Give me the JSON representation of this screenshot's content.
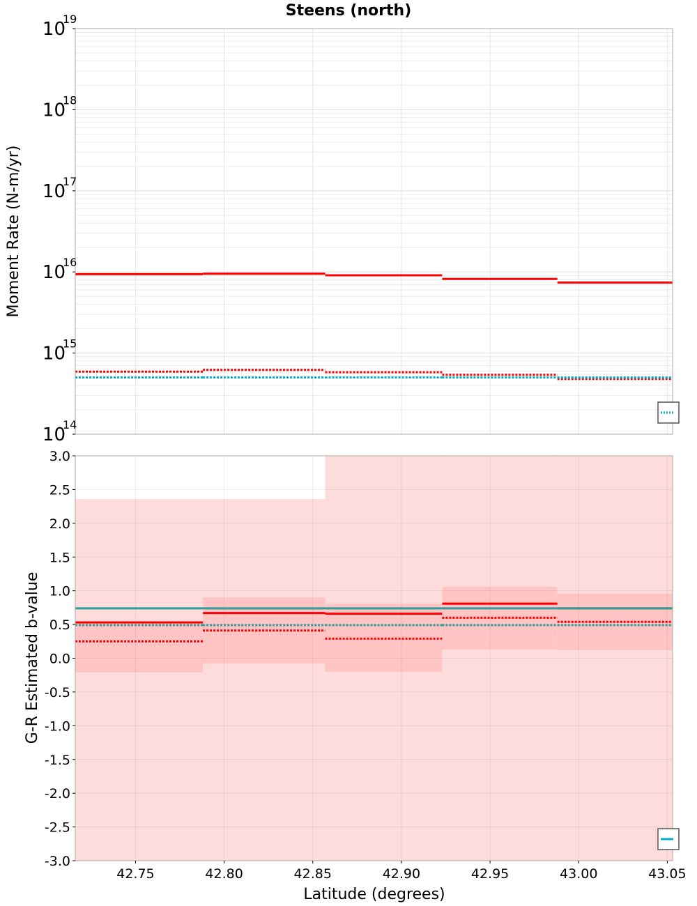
{
  "title": "Steens (north)",
  "chart_data": [
    {
      "type": "line",
      "subtype": "step",
      "xlabel": "",
      "ylabel": "Moment Rate (N-m/yr)",
      "yscale": "log",
      "xlim": [
        42.716,
        43.053
      ],
      "ylim_exponents": [
        14,
        19
      ],
      "ytick_base": "10",
      "ytick_exponents": [
        "14",
        "15",
        "16",
        "17",
        "18",
        "19"
      ],
      "bin_edges": [
        42.716,
        42.788,
        42.857,
        42.923,
        42.988,
        43.053
      ],
      "series": [
        {
          "name": "red solid",
          "style": "solid",
          "color": "#ff0000",
          "values": [
            9400000000000000.0,
            9500000000000000.0,
            9100000000000000.0,
            8200000000000000.0,
            7400000000000000.0
          ]
        },
        {
          "name": "red dotted",
          "style": "dotted",
          "color": "#ff0000",
          "values": [
            590000000000000.0,
            620000000000000.0,
            580000000000000.0,
            540000000000000.0,
            480000000000000.0
          ]
        },
        {
          "name": "cyan dotted",
          "style": "dotted",
          "color": "#00b0c8",
          "values": [
            500000000000000.0,
            500000000000000.0,
            500000000000000.0,
            500000000000000.0,
            500000000000000.0
          ]
        }
      ],
      "legend": "bottom-right (clipped)"
    },
    {
      "type": "line",
      "subtype": "step",
      "xlabel": "Latitude (degrees)",
      "ylabel": "G-R Estimated b-value",
      "xlim": [
        42.716,
        43.053
      ],
      "ylim": [
        -3.0,
        3.0
      ],
      "xticks": [
        "42.75",
        "42.80",
        "42.85",
        "42.90",
        "42.95",
        "43.00",
        "43.05"
      ],
      "yticks": [
        "-3.0",
        "-2.5",
        "-2.0",
        "-1.5",
        "-1.0",
        "-0.5",
        "0.0",
        "0.5",
        "1.0",
        "1.5",
        "2.0",
        "2.5",
        "3.0"
      ],
      "bin_edges": [
        42.716,
        42.788,
        42.857,
        42.923,
        42.988,
        43.053
      ],
      "series": [
        {
          "name": "red solid",
          "style": "solid",
          "color": "#ff0000",
          "values": [
            0.53,
            0.67,
            0.66,
            0.81,
            0.74
          ]
        },
        {
          "name": "red dotted",
          "style": "dotted",
          "color": "#ff0000",
          "values": [
            0.25,
            0.41,
            0.29,
            0.6,
            0.54
          ]
        },
        {
          "name": "teal solid",
          "style": "solid",
          "color": "#2a9d9d",
          "values": [
            0.74,
            0.74,
            0.74,
            0.74,
            0.74
          ]
        },
        {
          "name": "teal dotted",
          "style": "dotted",
          "color": "#2a9d9d",
          "values": [
            0.49,
            0.49,
            0.49,
            0.49,
            0.49
          ]
        }
      ],
      "bands": [
        {
          "name": "outer uncertainty",
          "color": "#ffdcdc",
          "lower": [
            -3.0,
            -3.0,
            -3.0,
            -3.0,
            -3.0
          ],
          "upper": [
            2.36,
            2.36,
            3.0,
            3.0,
            3.0
          ]
        },
        {
          "name": "inner uncertainty",
          "color": "#ffc4c4",
          "lower": [
            -0.21,
            -0.08,
            -0.2,
            0.13,
            0.12
          ],
          "upper": [
            0.55,
            0.9,
            0.81,
            1.06,
            0.96
          ]
        }
      ],
      "legend": "bottom-right (clipped)"
    }
  ]
}
